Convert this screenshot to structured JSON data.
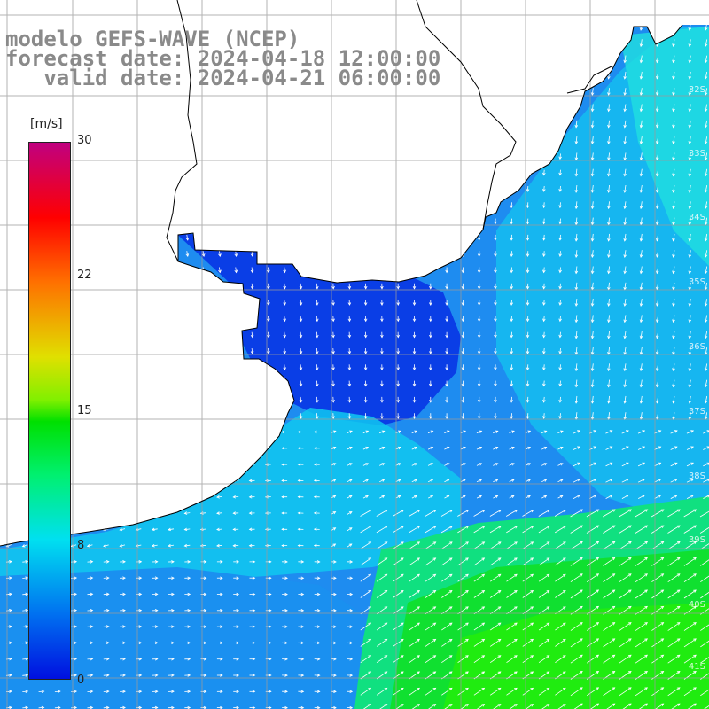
{
  "title": {
    "line1": "modelo GEFS-WAVE (NCEP)",
    "line2": "forecast date: 2024-04-18 12:00:00",
    "line3": "   valid date: 2024-04-21 06:00:00"
  },
  "colorbar": {
    "unit": "[m/s]",
    "ticks": [
      "30",
      "22",
      "15",
      "8",
      "0"
    ],
    "stops": [
      "#0010e0",
      "#0070f0",
      "#00e0f0",
      "#00e000",
      "#e0e000",
      "#ff7000",
      "#ff0000",
      "#c00080"
    ]
  },
  "lat_labels": [
    "32S",
    "33S",
    "34S",
    "35S",
    "36S",
    "37S",
    "38S",
    "39S",
    "40S",
    "41S"
  ],
  "colors": {
    "land": "#ffffff",
    "grid": "#aaaaaa",
    "coast": "#000000",
    "arrow": "#ffffff"
  }
}
